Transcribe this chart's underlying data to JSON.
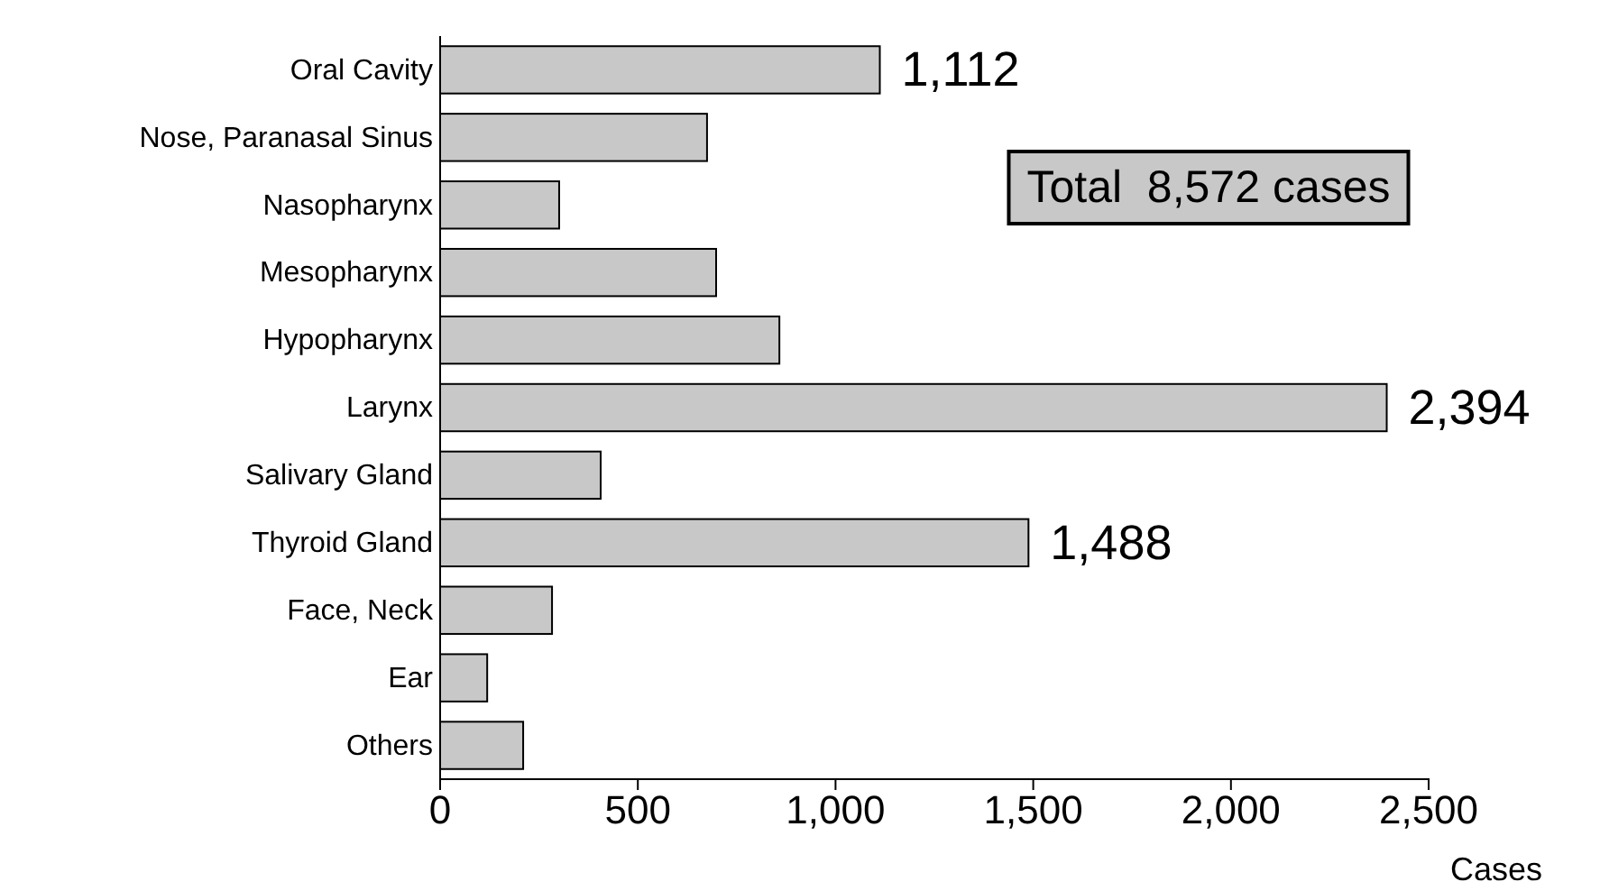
{
  "chart_data": {
    "type": "bar",
    "orientation": "horizontal",
    "xlabel": "Cases",
    "categories": [
      "Oral Cavity",
      "Nose, Paranasal Sinus",
      "Nasopharynx",
      "Mesopharynx",
      "Hypopharynx",
      "Larynx",
      "Salivary Gland",
      "Thyroid Gland",
      "Face, Neck",
      "Ear",
      "Others"
    ],
    "values": [
      1112,
      675,
      301,
      698,
      858,
      2394,
      406,
      1488,
      283,
      119,
      210
    ],
    "value_labels": [
      "1,112",
      null,
      null,
      null,
      null,
      "2,394",
      null,
      "1,488",
      null,
      null,
      null
    ],
    "color": "#c8c8c8",
    "xlim": [
      0,
      2500
    ],
    "xticks": [
      0,
      500,
      {
        "value": 1000,
        "label": "1,000"
      },
      {
        "value": 1500,
        "label": "1,500"
      },
      {
        "value": 2000,
        "label": "2,000"
      },
      {
        "value": 2500,
        "label": "2,500"
      }
    ],
    "grid": false,
    "annotations": [
      "Total  8,572 cases"
    ]
  }
}
